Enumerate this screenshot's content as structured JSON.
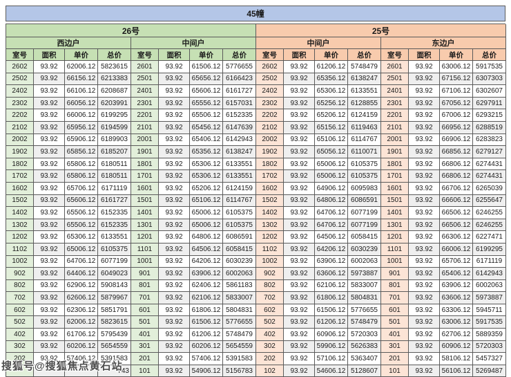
{
  "title": "45幢",
  "watermark_text": "搜狐号@搜狐焦点黄石站",
  "colors": {
    "title_bg": "#b4c6e7",
    "building26_header": "#c6e0b4",
    "building26_room": "#e2efda",
    "building25_header": "#f8cbad",
    "building25_room": "#fce4d6",
    "row_alternate": "#efefef"
  },
  "buildings": [
    {
      "label": "26号",
      "theme": "green"
    },
    {
      "label": "25号",
      "theme": "orange"
    }
  ],
  "column_headers": [
    "室号",
    "面积",
    "单价",
    "总价"
  ],
  "sections": [
    {
      "building": "26号",
      "unit_type": "西边户",
      "theme": "green",
      "rows": [
        [
          "2602",
          "93.92",
          "62006.12",
          "5823615"
        ],
        [
          "2502",
          "93.92",
          "66156.12",
          "6213383"
        ],
        [
          "2402",
          "93.92",
          "66106.12",
          "6208687"
        ],
        [
          "2302",
          "93.92",
          "66056.12",
          "6203991"
        ],
        [
          "2202",
          "93.92",
          "66006.12",
          "6199295"
        ],
        [
          "2102",
          "93.92",
          "65956.12",
          "6194599"
        ],
        [
          "2002",
          "93.92",
          "65906.12",
          "6189903"
        ],
        [
          "1902",
          "93.92",
          "65856.12",
          "6185207"
        ],
        [
          "1802",
          "93.92",
          "65806.12",
          "6180511"
        ],
        [
          "1702",
          "93.92",
          "65806.12",
          "6180511"
        ],
        [
          "1602",
          "93.92",
          "65706.12",
          "6171119"
        ],
        [
          "1502",
          "93.92",
          "65606.12",
          "6161727"
        ],
        [
          "1402",
          "93.92",
          "65506.12",
          "6152335"
        ],
        [
          "1302",
          "93.92",
          "65506.12",
          "6152335"
        ],
        [
          "1202",
          "93.92",
          "65306.12",
          "6133551"
        ],
        [
          "1102",
          "93.92",
          "65006.12",
          "6105375"
        ],
        [
          "1002",
          "93.92",
          "64706.12",
          "6077199"
        ],
        [
          "902",
          "93.92",
          "64406.12",
          "6049023"
        ],
        [
          "802",
          "93.92",
          "62906.12",
          "5908143"
        ],
        [
          "702",
          "93.92",
          "62606.12",
          "5879967"
        ],
        [
          "602",
          "93.92",
          "62306.12",
          "5851791"
        ],
        [
          "502",
          "93.92",
          "62006.12",
          "5823615"
        ],
        [
          "402",
          "93.92",
          "61706.12",
          "5795439"
        ],
        [
          "302",
          "93.92",
          "60206.12",
          "5654559"
        ],
        [
          "202",
          "93.92",
          "57406.12",
          "5391583"
        ],
        [
          "",
          "",
          "",
          "743"
        ]
      ]
    },
    {
      "building": "26号",
      "unit_type": "中间户",
      "theme": "green",
      "rows": [
        [
          "2601",
          "93.92",
          "61506.12",
          "5776655"
        ],
        [
          "2501",
          "93.92",
          "65656.12",
          "6166423"
        ],
        [
          "2401",
          "93.92",
          "65606.12",
          "6161727"
        ],
        [
          "2301",
          "93.92",
          "65556.12",
          "6157031"
        ],
        [
          "2201",
          "93.92",
          "65506.12",
          "6152335"
        ],
        [
          "2101",
          "93.92",
          "65456.12",
          "6147639"
        ],
        [
          "2001",
          "93.92",
          "65406.12",
          "6142943"
        ],
        [
          "1901",
          "93.92",
          "65356.12",
          "6138247"
        ],
        [
          "1801",
          "93.92",
          "65306.12",
          "6133551"
        ],
        [
          "1701",
          "93.92",
          "65306.12",
          "6133551"
        ],
        [
          "1601",
          "93.92",
          "65206.12",
          "6124159"
        ],
        [
          "1501",
          "93.92",
          "65106.12",
          "6114767"
        ],
        [
          "1401",
          "93.92",
          "65006.12",
          "6105375"
        ],
        [
          "1301",
          "93.92",
          "65006.12",
          "6105375"
        ],
        [
          "1201",
          "93.92",
          "64806.12",
          "6086591"
        ],
        [
          "1101",
          "93.92",
          "64506.12",
          "6058415"
        ],
        [
          "1001",
          "93.92",
          "64206.12",
          "6030239"
        ],
        [
          "901",
          "93.92",
          "63906.12",
          "6002063"
        ],
        [
          "801",
          "93.92",
          "62406.12",
          "5861183"
        ],
        [
          "701",
          "93.92",
          "62106.12",
          "5833007"
        ],
        [
          "601",
          "93.92",
          "61806.12",
          "5804831"
        ],
        [
          "501",
          "93.92",
          "61506.12",
          "5776655"
        ],
        [
          "401",
          "93.92",
          "61206.12",
          "5748479"
        ],
        [
          "301",
          "93.92",
          "60206.12",
          "5654559"
        ],
        [
          "201",
          "93.92",
          "57406.12",
          "5391583"
        ],
        [
          "101",
          "93.92",
          "54906.12",
          "5156783"
        ]
      ]
    },
    {
      "building": "25号",
      "unit_type": "中间户",
      "theme": "orange",
      "rows": [
        [
          "2602",
          "93.92",
          "61206.12",
          "5748479"
        ],
        [
          "2502",
          "93.92",
          "65356.12",
          "6138247"
        ],
        [
          "2402",
          "93.92",
          "65306.12",
          "6133551"
        ],
        [
          "2302",
          "93.92",
          "65256.12",
          "6128855"
        ],
        [
          "2202",
          "93.92",
          "65206.12",
          "6124159"
        ],
        [
          "2102",
          "93.92",
          "65156.12",
          "6119463"
        ],
        [
          "2002",
          "93.92",
          "65106.12",
          "6114767"
        ],
        [
          "1902",
          "93.92",
          "65056.12",
          "6110071"
        ],
        [
          "1802",
          "93.92",
          "65006.12",
          "6105375"
        ],
        [
          "1702",
          "93.92",
          "65006.12",
          "6105375"
        ],
        [
          "1602",
          "93.92",
          "64906.12",
          "6095983"
        ],
        [
          "1502",
          "93.92",
          "64806.12",
          "6086591"
        ],
        [
          "1402",
          "93.92",
          "64706.12",
          "6077199"
        ],
        [
          "1302",
          "93.92",
          "64706.12",
          "6077199"
        ],
        [
          "1202",
          "93.92",
          "64506.12",
          "6058415"
        ],
        [
          "1102",
          "93.92",
          "64206.12",
          "6030239"
        ],
        [
          "1002",
          "93.92",
          "63906.12",
          "6002063"
        ],
        [
          "902",
          "93.92",
          "63606.12",
          "5973887"
        ],
        [
          "802",
          "93.92",
          "62106.12",
          "5833007"
        ],
        [
          "702",
          "93.92",
          "61806.12",
          "5804831"
        ],
        [
          "602",
          "93.92",
          "61506.12",
          "5776655"
        ],
        [
          "502",
          "93.92",
          "61206.12",
          "5748479"
        ],
        [
          "402",
          "93.92",
          "60906.12",
          "5720303"
        ],
        [
          "302",
          "93.92",
          "59906.12",
          "5626383"
        ],
        [
          "202",
          "93.92",
          "57106.12",
          "5363407"
        ],
        [
          "102",
          "93.92",
          "54606.12",
          "5128607"
        ]
      ]
    },
    {
      "building": "25号",
      "unit_type": "东边户",
      "theme": "orange",
      "rows": [
        [
          "2601",
          "93.92",
          "63006.12",
          "5917535"
        ],
        [
          "2501",
          "93.92",
          "67156.12",
          "6307303"
        ],
        [
          "2401",
          "93.92",
          "67106.12",
          "6302607"
        ],
        [
          "2301",
          "93.92",
          "67056.12",
          "6297911"
        ],
        [
          "2201",
          "93.92",
          "67006.12",
          "6293215"
        ],
        [
          "2101",
          "93.92",
          "66956.12",
          "6288519"
        ],
        [
          "2001",
          "93.92",
          "66906.12",
          "6283823"
        ],
        [
          "1901",
          "93.92",
          "66856.12",
          "6279127"
        ],
        [
          "1801",
          "93.92",
          "66806.12",
          "6274431"
        ],
        [
          "1701",
          "93.92",
          "66806.12",
          "6274431"
        ],
        [
          "1601",
          "93.92",
          "66706.12",
          "6265039"
        ],
        [
          "1501",
          "93.92",
          "66606.12",
          "6255647"
        ],
        [
          "1401",
          "93.92",
          "66506.12",
          "6246255"
        ],
        [
          "1301",
          "93.92",
          "66506.12",
          "6246255"
        ],
        [
          "1201",
          "93.92",
          "66306.12",
          "6227471"
        ],
        [
          "1101",
          "93.92",
          "66006.12",
          "6199295"
        ],
        [
          "1001",
          "93.92",
          "65706.12",
          "6171119"
        ],
        [
          "901",
          "93.92",
          "65406.12",
          "6142943"
        ],
        [
          "801",
          "93.92",
          "63906.12",
          "6002063"
        ],
        [
          "701",
          "93.92",
          "63606.12",
          "5973887"
        ],
        [
          "601",
          "93.92",
          "63306.12",
          "5945711"
        ],
        [
          "501",
          "93.92",
          "63006.12",
          "5917535"
        ],
        [
          "401",
          "93.92",
          "62706.12",
          "5889359"
        ],
        [
          "301",
          "93.92",
          "60906.12",
          "5720303"
        ],
        [
          "201",
          "93.92",
          "58106.12",
          "5457327"
        ],
        [
          "101",
          "93.92",
          "56106.12",
          "5269487"
        ]
      ]
    }
  ]
}
